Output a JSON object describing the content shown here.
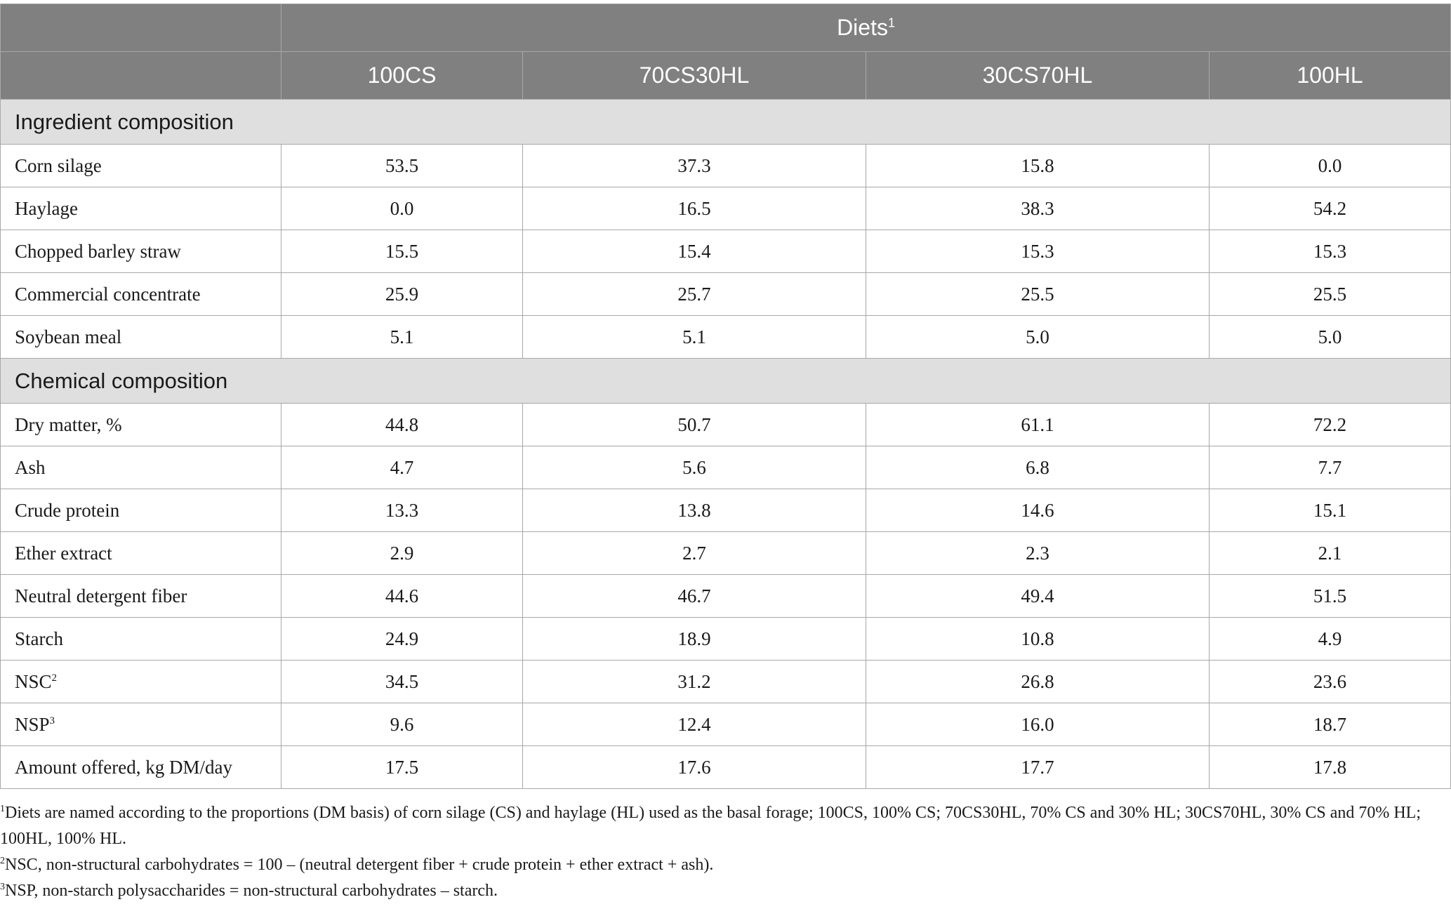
{
  "table": {
    "group_header": "Diets",
    "group_header_sup": "1",
    "columns": [
      "100CS",
      "70CS30HL",
      "30CS70HL",
      "100HL"
    ],
    "sections": [
      {
        "title": "Ingredient composition",
        "rows": [
          {
            "label": "Corn silage",
            "sup": "",
            "values": [
              "53.5",
              "37.3",
              "15.8",
              "0.0"
            ]
          },
          {
            "label": "Haylage",
            "sup": "",
            "values": [
              "0.0",
              "16.5",
              "38.3",
              "54.2"
            ]
          },
          {
            "label": "Chopped barley straw",
            "sup": "",
            "values": [
              "15.5",
              "15.4",
              "15.3",
              "15.3"
            ]
          },
          {
            "label": "Commercial concentrate",
            "sup": "",
            "values": [
              "25.9",
              "25.7",
              "25.5",
              "25.5"
            ]
          },
          {
            "label": "Soybean meal",
            "sup": "",
            "values": [
              "5.1",
              "5.1",
              "5.0",
              "5.0"
            ]
          }
        ]
      },
      {
        "title": "Chemical composition",
        "rows": [
          {
            "label": "Dry matter, %",
            "sup": "",
            "values": [
              "44.8",
              "50.7",
              "61.1",
              "72.2"
            ]
          },
          {
            "label": "Ash",
            "sup": "",
            "values": [
              "4.7",
              "5.6",
              "6.8",
              "7.7"
            ]
          },
          {
            "label": "Crude protein",
            "sup": "",
            "values": [
              "13.3",
              "13.8",
              "14.6",
              "15.1"
            ]
          },
          {
            "label": "Ether extract",
            "sup": "",
            "values": [
              "2.9",
              "2.7",
              "2.3",
              "2.1"
            ]
          },
          {
            "label": "Neutral detergent fiber",
            "sup": "",
            "values": [
              "44.6",
              "46.7",
              "49.4",
              "51.5"
            ]
          },
          {
            "label": "Starch",
            "sup": "",
            "values": [
              "24.9",
              "18.9",
              "10.8",
              "4.9"
            ]
          },
          {
            "label": "NSC",
            "sup": "2",
            "values": [
              "34.5",
              "31.2",
              "26.8",
              "23.6"
            ]
          },
          {
            "label": "NSP",
            "sup": "3",
            "values": [
              "9.6",
              "12.4",
              "16.0",
              "18.7"
            ]
          },
          {
            "label": "Amount offered, kg DM/day",
            "sup": "",
            "values": [
              "17.5",
              "17.6",
              "17.7",
              "17.8"
            ]
          }
        ]
      }
    ]
  },
  "footnotes": [
    {
      "sup": "1",
      "text": "Diets are named according to the proportions (DM basis) of corn silage (CS) and haylage (HL) used as the basal forage; 100CS, 100% CS; 70CS30HL, 70% CS and 30% HL; 30CS70HL, 30% CS and 70% HL; 100HL, 100% HL."
    },
    {
      "sup": "2",
      "text": "NSC, non-structural carbohydrates = 100 – (neutral detergent fiber + crude protein + ether extract + ash)."
    },
    {
      "sup": "3",
      "text": "NSP, non-starch polysaccharides = non-structural carbohydrates – starch."
    }
  ],
  "colors": {
    "header_bg": "#808080",
    "section_bg": "#e0dfe0",
    "border": "#a8a8a8"
  }
}
